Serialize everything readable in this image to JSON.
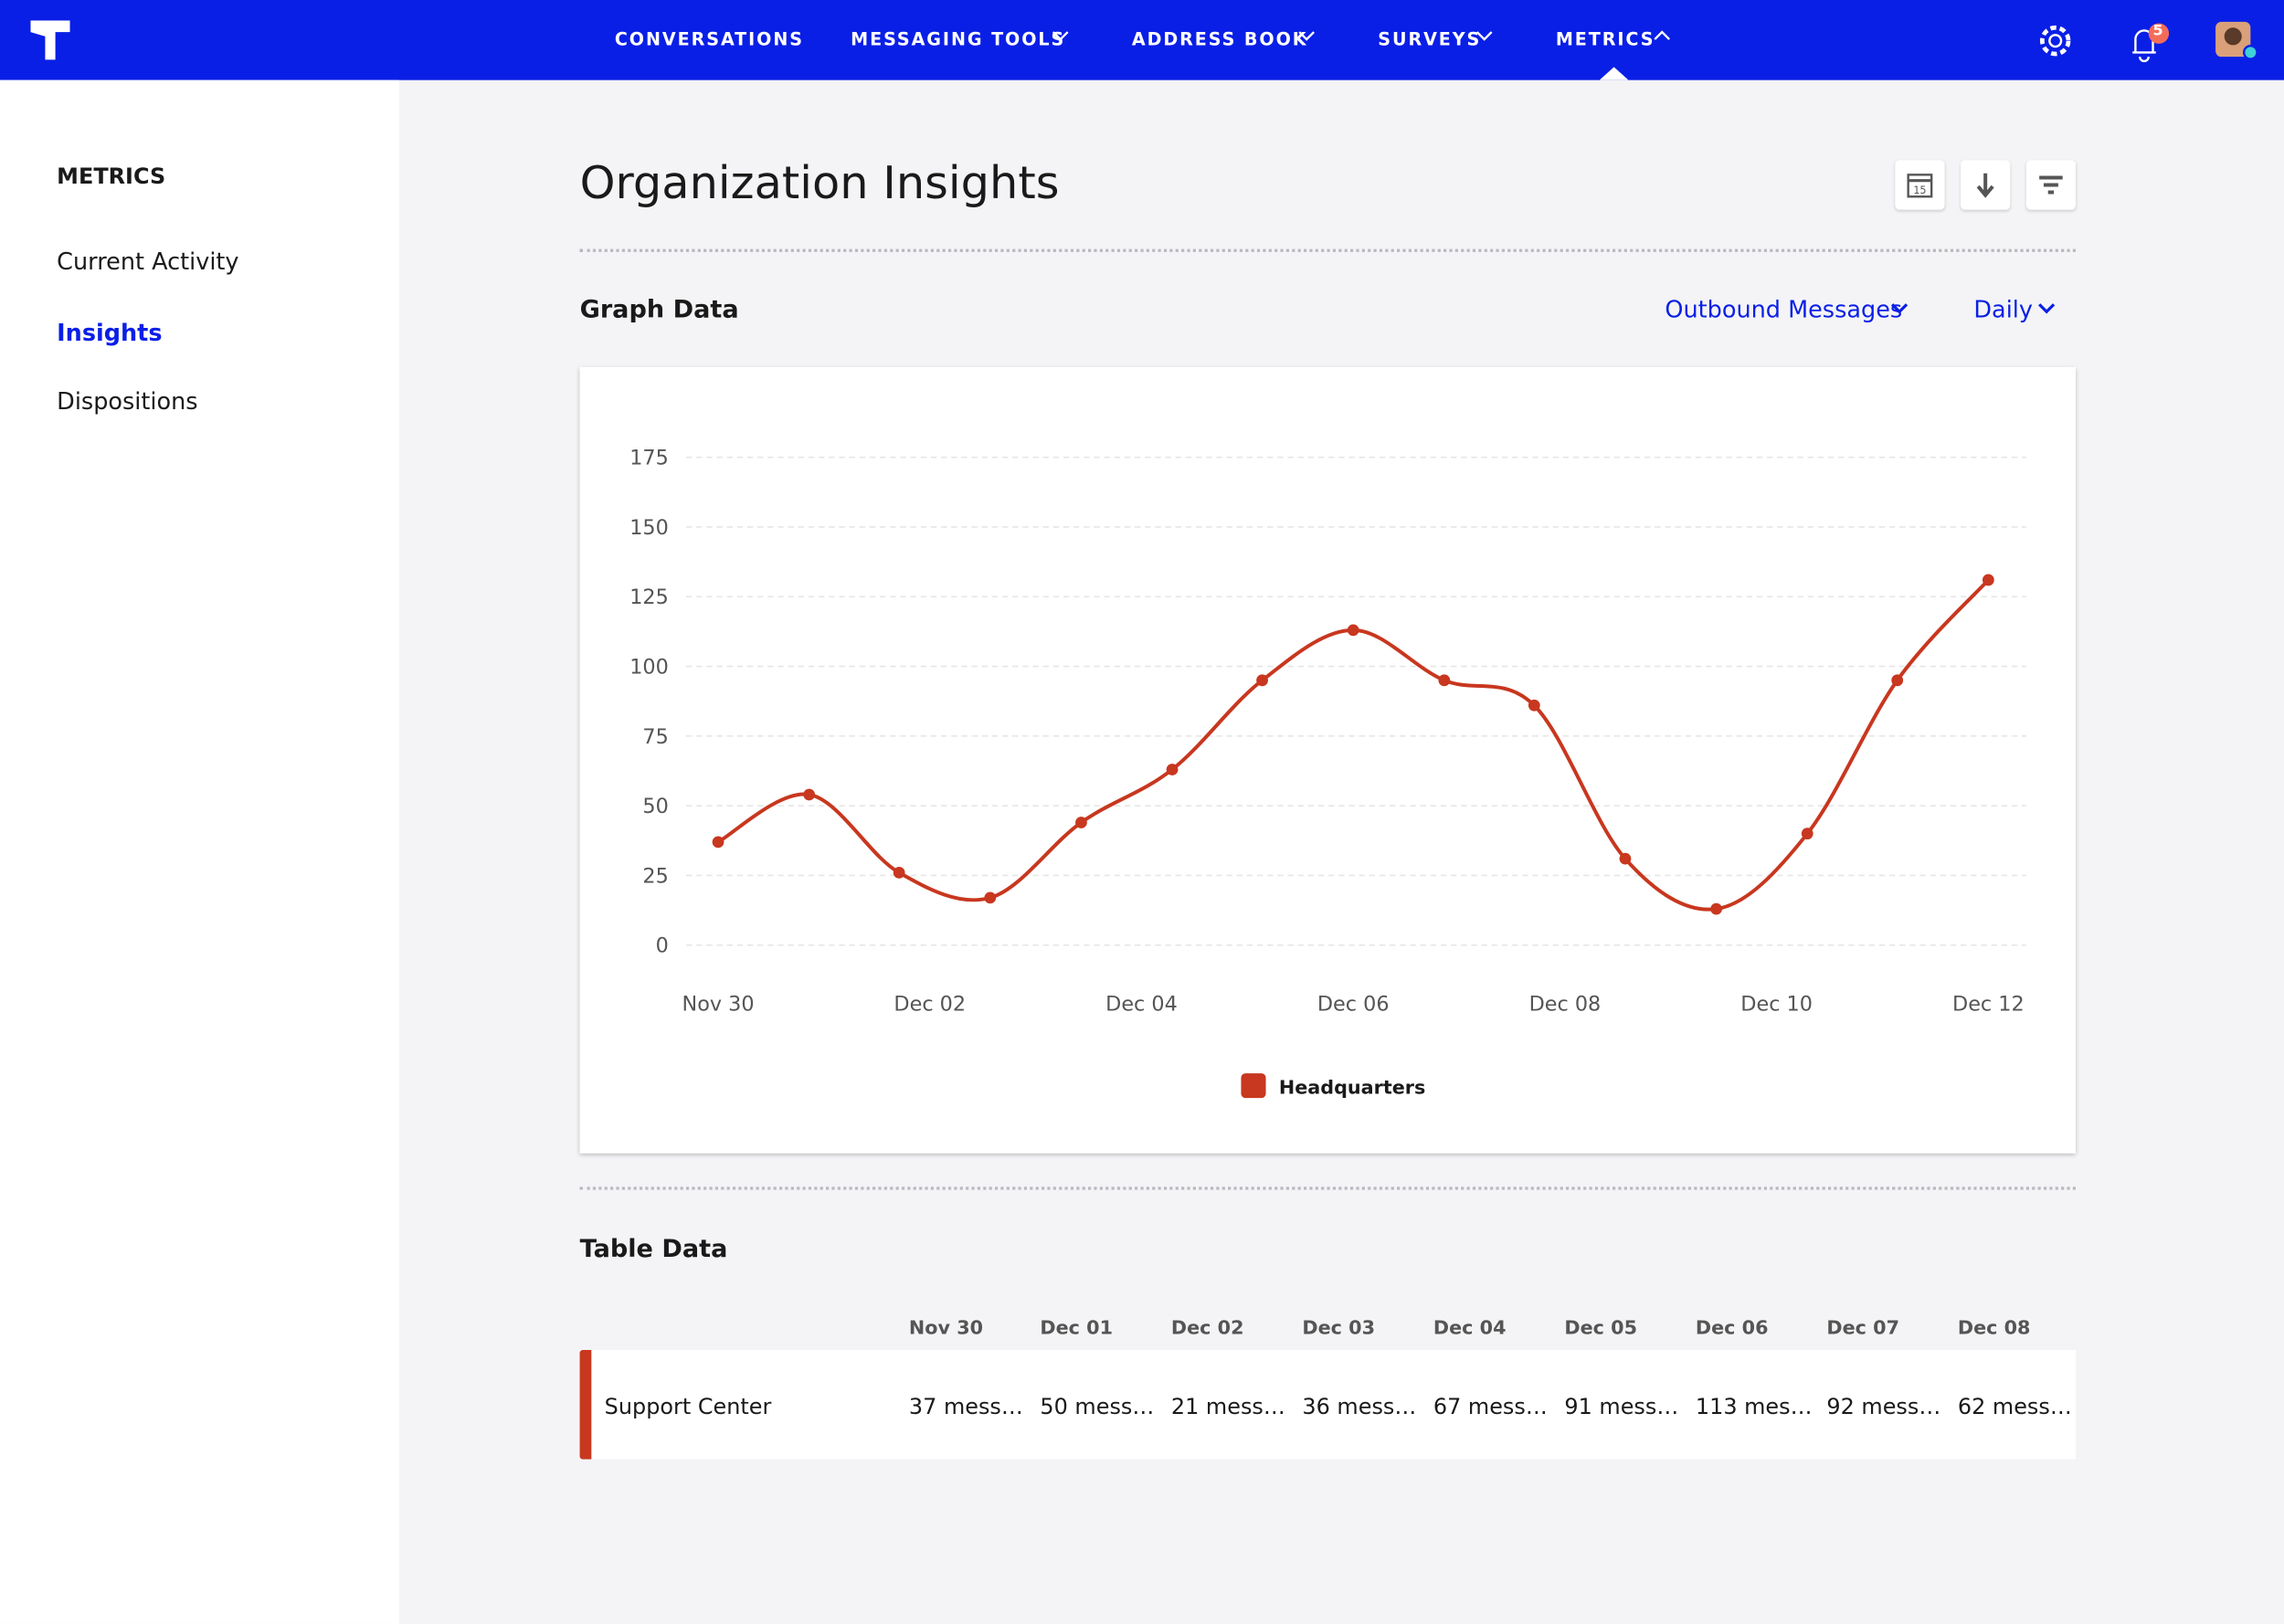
{
  "nav": {
    "items": [
      "CONVERSATIONS",
      "MESSAGING TOOLS",
      "ADDRESS BOOK",
      "SURVEYS",
      "METRICS"
    ],
    "notifications": "5"
  },
  "sidebar": {
    "heading": "METRICS",
    "links": [
      "Current Activity",
      "Insights",
      "Dispositions"
    ]
  },
  "header": {
    "title": "Organization Insights"
  },
  "graph": {
    "heading": "Graph Data",
    "metric": "Outbound Messages",
    "interval": "Daily"
  },
  "chart_data": {
    "type": "line",
    "x": [
      0,
      0.86,
      1.71,
      2.57,
      3.43,
      4.29,
      5.14,
      6,
      6.86,
      7.71,
      8.57,
      9.43,
      10.29,
      11.14,
      12
    ],
    "series": [
      {
        "name": "Headquarters",
        "color": "#c8371f",
        "values": [
          37,
          54,
          26,
          17,
          44,
          63,
          95,
          113,
          95,
          86,
          31,
          13,
          40,
          95,
          131
        ]
      }
    ],
    "xlim": [
      0,
      12
    ],
    "xticks": [
      {
        "value": 0,
        "label": "Nov 30"
      },
      {
        "value": 2,
        "label": "Dec 02"
      },
      {
        "value": 4,
        "label": "Dec 04"
      },
      {
        "value": 6,
        "label": "Dec 06"
      },
      {
        "value": 8,
        "label": "Dec 08"
      },
      {
        "value": 10,
        "label": "Dec 10"
      },
      {
        "value": 12,
        "label": "Dec 12"
      }
    ],
    "ylim": [
      0,
      175
    ],
    "yticks": [
      0,
      25,
      50,
      75,
      100,
      125,
      150,
      175
    ],
    "grid": true
  },
  "table": {
    "heading": "Table Data",
    "columns": [
      "Nov 30",
      "Dec 01",
      "Dec 02",
      "Dec 03",
      "Dec 04",
      "Dec 05",
      "Dec 06",
      "Dec 07",
      "Dec 08"
    ],
    "rows": [
      [
        "Support Center",
        "37 mess…",
        "50 mess…",
        "21 mess…",
        "36 mess…",
        "67 mess…",
        "91 mess…",
        "113 mes…",
        "92 mess…",
        "62 mess…"
      ]
    ]
  }
}
